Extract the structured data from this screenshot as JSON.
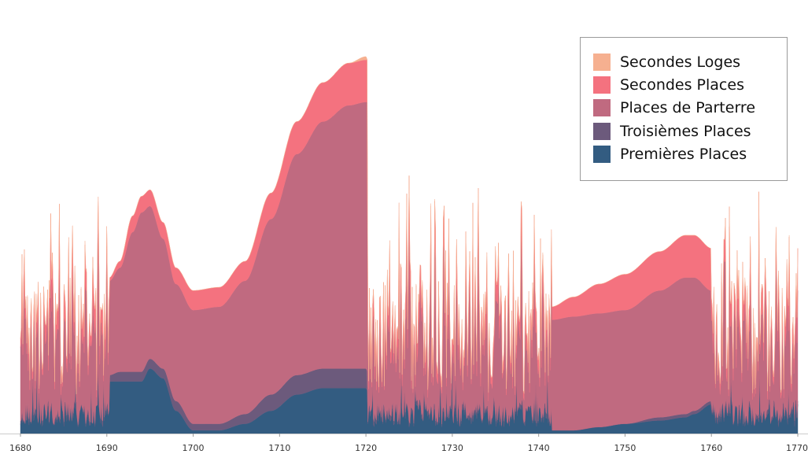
{
  "chart_data": {
    "type": "area",
    "stacked": true,
    "xlim": [
      1680,
      1770
    ],
    "x_ticks": [
      "1680",
      "1690",
      "1700",
      "1710",
      "1720",
      "1730",
      "1740",
      "1750",
      "1760",
      "1770"
    ],
    "grid": false,
    "legend_position": "top-right",
    "series": [
      {
        "name": "Premières Places",
        "color": "#335c81",
        "smooth_points": [
          [
            1690.3,
            16
          ],
          [
            1691.5,
            16
          ],
          [
            1693,
            16
          ],
          [
            1694,
            16
          ],
          [
            1695,
            20
          ],
          [
            1696.5,
            17
          ],
          [
            1698,
            7
          ],
          [
            1700,
            1
          ],
          [
            1703,
            1
          ],
          [
            1706,
            3
          ],
          [
            1709,
            7
          ],
          [
            1712,
            12
          ],
          [
            1715,
            14
          ],
          [
            1718,
            14
          ],
          [
            1720,
            14
          ],
          [
            1720.2,
            13
          ],
          [
            1731.5,
            16
          ],
          [
            1741.5,
            1
          ],
          [
            1744,
            1
          ],
          [
            1747,
            2
          ],
          [
            1750,
            3
          ],
          [
            1754,
            4
          ],
          [
            1757,
            5
          ],
          [
            1758,
            6
          ],
          [
            1760,
            9
          ]
        ]
      },
      {
        "name": "Troisièmes Places",
        "color": "#6c5a7c",
        "smooth_points": [
          [
            1690.3,
            2
          ],
          [
            1691.5,
            3
          ],
          [
            1693,
            3
          ],
          [
            1694,
            3
          ],
          [
            1695,
            3
          ],
          [
            1696.5,
            3
          ],
          [
            1698,
            3
          ],
          [
            1700,
            2
          ],
          [
            1703,
            2
          ],
          [
            1706,
            3
          ],
          [
            1709,
            5
          ],
          [
            1712,
            6
          ],
          [
            1715,
            6
          ],
          [
            1718,
            6
          ],
          [
            1720,
            6
          ],
          [
            1720.2,
            6
          ],
          [
            1731.5,
            4
          ],
          [
            1741.5,
            0
          ],
          [
            1744,
            0
          ],
          [
            1747,
            0
          ],
          [
            1750,
            0
          ],
          [
            1754,
            1
          ],
          [
            1757,
            1
          ],
          [
            1758,
            1
          ],
          [
            1760,
            1
          ]
        ]
      },
      {
        "name": "Places de Parterre",
        "color": "#c06a80",
        "smooth_points": [
          [
            1690.3,
            29
          ],
          [
            1691.5,
            32
          ],
          [
            1693,
            43
          ],
          [
            1694,
            49
          ],
          [
            1695,
            47
          ],
          [
            1696.5,
            40
          ],
          [
            1698,
            36
          ],
          [
            1700,
            35
          ],
          [
            1703,
            36
          ],
          [
            1706,
            41
          ],
          [
            1709,
            54
          ],
          [
            1712,
            68
          ],
          [
            1715,
            76
          ],
          [
            1718,
            81
          ],
          [
            1720,
            82
          ],
          [
            1720.2,
            83
          ],
          [
            1731.5,
            59
          ],
          [
            1741.5,
            34
          ],
          [
            1744,
            35
          ],
          [
            1747,
            35
          ],
          [
            1750,
            35
          ],
          [
            1754,
            39
          ],
          [
            1757,
            42
          ],
          [
            1758,
            41
          ],
          [
            1760,
            34
          ]
        ]
      },
      {
        "name": "Secondes Places",
        "color": "#f4727f",
        "smooth_points": [
          [
            1690.3,
            1
          ],
          [
            1691.5,
            2
          ],
          [
            1693,
            5
          ],
          [
            1694,
            5
          ],
          [
            1695,
            5
          ],
          [
            1696.5,
            5
          ],
          [
            1698,
            5
          ],
          [
            1700,
            6
          ],
          [
            1703,
            6
          ],
          [
            1706,
            6
          ],
          [
            1709,
            8
          ],
          [
            1712,
            10
          ],
          [
            1715,
            12
          ],
          [
            1718,
            13
          ],
          [
            1720,
            13
          ],
          [
            1720.2,
            13
          ],
          [
            1731.5,
            12
          ],
          [
            1741.5,
            4
          ],
          [
            1744,
            6
          ],
          [
            1747,
            9
          ],
          [
            1750,
            11
          ],
          [
            1754,
            12
          ],
          [
            1757,
            13
          ],
          [
            1758,
            13
          ],
          [
            1760,
            13
          ]
        ]
      },
      {
        "name": "Secondes Loges",
        "color": "#f6b090",
        "smooth_points": [
          [
            1690.3,
            0
          ],
          [
            1691.5,
            0
          ],
          [
            1693,
            0
          ],
          [
            1694,
            0
          ],
          [
            1695,
            0
          ],
          [
            1696.5,
            0
          ],
          [
            1698,
            0
          ],
          [
            1700,
            0
          ],
          [
            1703,
            0
          ],
          [
            1706,
            0
          ],
          [
            1709,
            0
          ],
          [
            1712,
            0
          ],
          [
            1715,
            0
          ],
          [
            1718,
            0
          ],
          [
            1720,
            1
          ],
          [
            1720.2,
            0
          ],
          [
            1731.5,
            0
          ],
          [
            1741.5,
            0
          ],
          [
            1744,
            0
          ],
          [
            1747,
            0
          ],
          [
            1750,
            0
          ],
          [
            1754,
            0
          ],
          [
            1757,
            0
          ],
          [
            1758,
            0
          ],
          [
            1760,
            0
          ]
        ]
      }
    ],
    "noisy_ranges": [
      [
        1680,
        1690.3
      ],
      [
        1720.2,
        1731.5
      ],
      [
        1731.5,
        1741.5
      ],
      [
        1760,
        1770
      ]
    ],
    "spikes": [
      [
        1680.6,
        55
      ],
      [
        1682,
        45
      ],
      [
        1683.5,
        80
      ],
      [
        1684.5,
        72
      ],
      [
        1686,
        85
      ],
      [
        1687.5,
        68
      ],
      [
        1689,
        90
      ],
      [
        1690,
        70
      ],
      [
        1725,
        95
      ],
      [
        1726.3,
        70
      ],
      [
        1728,
        88
      ],
      [
        1729,
        100
      ],
      [
        1729.6,
        70
      ],
      [
        1730.5,
        72
      ],
      [
        1732,
        68
      ],
      [
        1733,
        92
      ],
      [
        1734,
        66
      ],
      [
        1735,
        74
      ],
      [
        1736.5,
        75
      ],
      [
        1738,
        90
      ],
      [
        1739.5,
        78
      ],
      [
        1740.5,
        68
      ],
      [
        1761.5,
        80
      ],
      [
        1763,
        64
      ],
      [
        1764.5,
        76
      ],
      [
        1766.2,
        70
      ],
      [
        1767.5,
        86
      ],
      [
        1769,
        66
      ],
      [
        1769.8,
        60
      ]
    ],
    "y_max": 100
  }
}
